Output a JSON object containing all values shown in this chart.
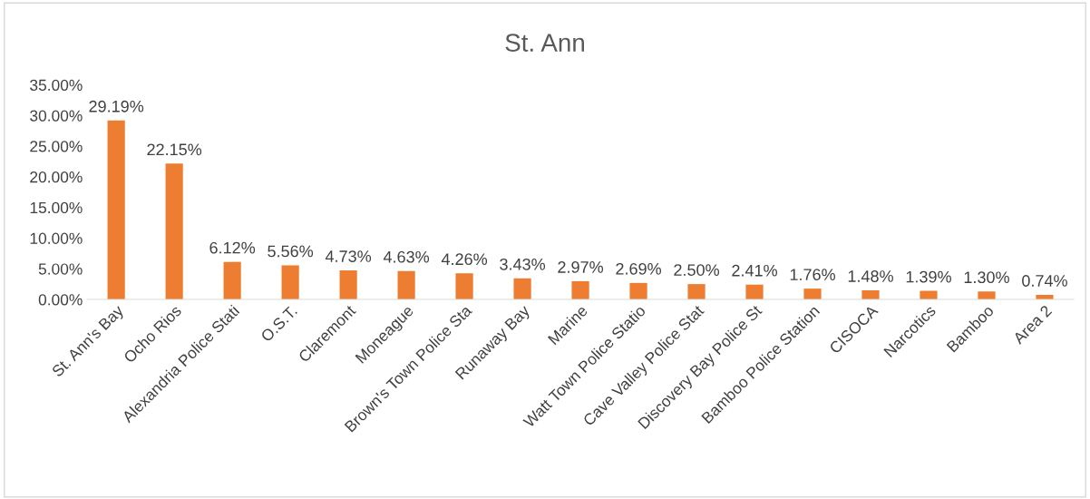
{
  "chart_data": {
    "type": "bar",
    "title": "St. Ann",
    "categories": [
      "St. Ann's Bay",
      "Ocho Rios",
      "Alexandria Police Stati",
      "O.S.T.",
      "Claremont",
      "Moneague",
      "Brown's Town Police Sta",
      "Runaway Bay",
      "Marine",
      "Watt Town Police Statio",
      "Cave Valley Police Stat",
      "Discovery Bay Police St",
      "Bamboo Police Station",
      "CISOCA",
      "Narcotics",
      "Bamboo",
      "Area 2"
    ],
    "values": [
      29.19,
      22.15,
      6.12,
      5.56,
      4.73,
      4.63,
      4.26,
      3.43,
      2.97,
      2.69,
      2.5,
      2.41,
      1.76,
      1.48,
      1.39,
      1.3,
      0.74
    ],
    "value_labels": [
      "29.19%",
      "22.15%",
      "6.12%",
      "5.56%",
      "4.73%",
      "4.63%",
      "4.26%",
      "3.43%",
      "2.97%",
      "2.69%",
      "2.50%",
      "2.41%",
      "1.76%",
      "1.48%",
      "1.39%",
      "1.30%",
      "0.74%"
    ],
    "color": "#ed7d31",
    "ylim": [
      0,
      35
    ],
    "yticks": [
      {
        "value": 0,
        "label": "0.00%"
      },
      {
        "value": 5,
        "label": "5.00%"
      },
      {
        "value": 10,
        "label": "10.00%"
      },
      {
        "value": 15,
        "label": "15.00%"
      },
      {
        "value": 20,
        "label": "20.00%"
      },
      {
        "value": 25,
        "label": "25.00%"
      },
      {
        "value": 30,
        "label": "30.00%"
      },
      {
        "value": 35,
        "label": "35.00%"
      }
    ],
    "grid": false,
    "legend": false
  }
}
